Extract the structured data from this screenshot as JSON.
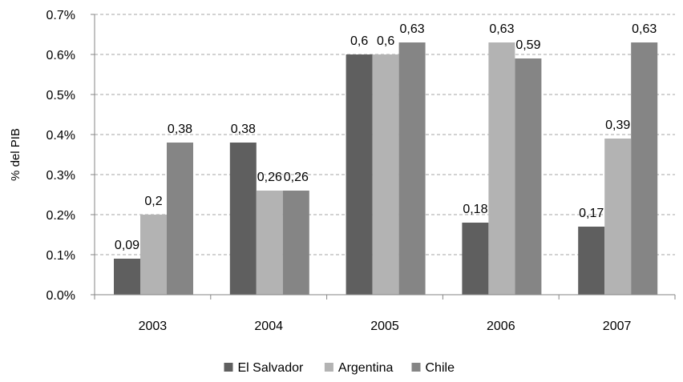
{
  "chart_data": {
    "type": "bar",
    "categories": [
      "2003",
      "2004",
      "2005",
      "2006",
      "2007"
    ],
    "series": [
      {
        "name": "El Salvador",
        "values": [
          0.09,
          0.38,
          0.6,
          0.18,
          0.17
        ],
        "labels": [
          "0,09",
          "0,38",
          "0,6",
          "0,18",
          "0,17"
        ],
        "color": "#5f5f5f"
      },
      {
        "name": "Argentina",
        "values": [
          0.2,
          0.26,
          0.6,
          0.63,
          0.39
        ],
        "labels": [
          "0,2",
          "0,26",
          "0,6",
          "0,63",
          "0,39"
        ],
        "color": "#b3b3b3"
      },
      {
        "name": "Chile",
        "values": [
          0.38,
          0.26,
          0.63,
          0.59,
          0.63
        ],
        "labels": [
          "0,38",
          "0,26",
          "0,63",
          "0,59",
          "0,63"
        ],
        "color": "#858585"
      }
    ],
    "ylabel": "% del PIB",
    "xlabel": "",
    "title": "",
    "ylim": [
      0,
      0.7
    ],
    "yticks": [
      {
        "value": 0,
        "label": "0.0%"
      },
      {
        "value": 0.1,
        "label": "0.1%"
      },
      {
        "value": 0.2,
        "label": "0.2%"
      },
      {
        "value": 0.3,
        "label": "0.3%"
      },
      {
        "value": 0.4,
        "label": "0.4%"
      },
      {
        "value": 0.5,
        "label": "0.5%"
      },
      {
        "value": 0.6,
        "label": "0.6%"
      },
      {
        "value": 0.7,
        "label": "0.7%"
      }
    ],
    "grid": true,
    "legend_position": "bottom",
    "grid_color": "#a6a6a6",
    "axis_color": "#868686"
  }
}
